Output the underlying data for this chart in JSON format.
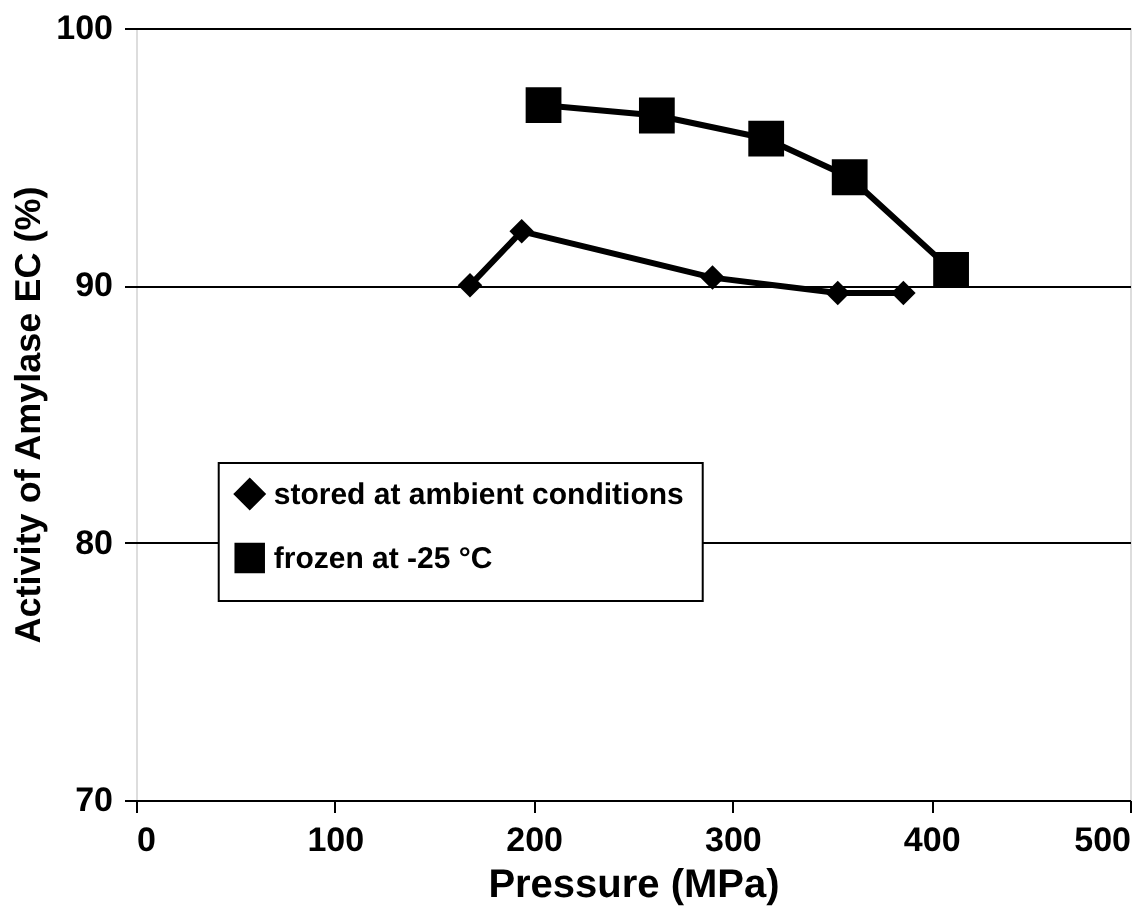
{
  "chart_data": {
    "type": "line",
    "xlabel": "Pressure (MPa)",
    "ylabel": "Activity of Amylase EC (%)",
    "xlim": [
      0,
      500
    ],
    "xticks": [
      0,
      100,
      200,
      300,
      400,
      500
    ],
    "ylim": [
      70,
      100
    ],
    "yticks": [
      70,
      80,
      90,
      100
    ],
    "grid": "y",
    "legend": "bottom",
    "line_style": "solid",
    "series": [
      {
        "name": "stored at ambient conditions",
        "color": "#000000",
        "marker": "diamond",
        "x": [
          168,
          194,
          290,
          353,
          386
        ],
        "values": [
          90.0,
          92.1,
          90.3,
          89.7,
          89.7
        ]
      },
      {
        "name": "frozen at -25 °C",
        "color": "#000000",
        "marker": "square",
        "x": [
          205,
          262,
          317,
          359,
          410
        ],
        "values": [
          97.0,
          96.6,
          95.7,
          94.2,
          90.6
        ]
      }
    ]
  }
}
